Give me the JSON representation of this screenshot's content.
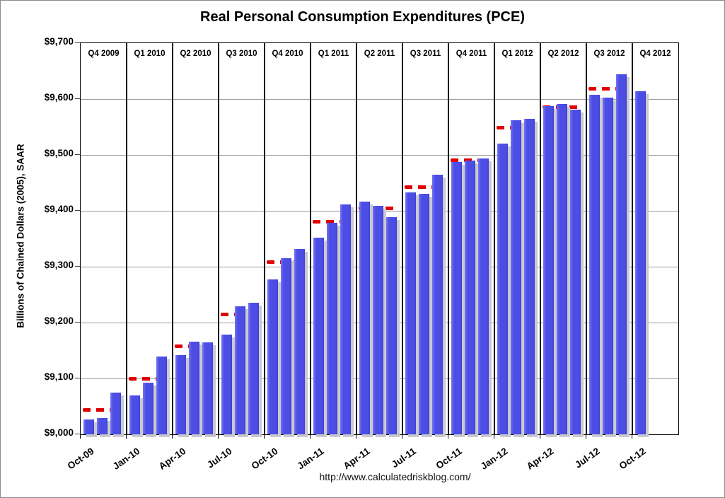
{
  "title": "Real Personal Consumption Expenditures (PCE)",
  "source_url": "http://www.calculatedriskblog.com/",
  "y_axis": {
    "label": "Billions of Chained Dollars (2005), SAAR",
    "min": 9000,
    "max": 9700,
    "step": 100,
    "tick_labels": [
      "$9,000",
      "$9,100",
      "$9,200",
      "$9,300",
      "$9,400",
      "$9,500",
      "$9,600",
      "$9,700"
    ]
  },
  "x_axis": {
    "tick_labels": [
      "Oct-09",
      "Jan-10",
      "Apr-10",
      "Jul-10",
      "Oct-10",
      "Jan-11",
      "Apr-11",
      "Jul-11",
      "Oct-11",
      "Jan-12",
      "Apr-12",
      "Jul-12",
      "Oct-12"
    ]
  },
  "quarters": [
    {
      "label": "Q4 2009",
      "average": 9044
    },
    {
      "label": "Q1 2010",
      "average": 9100
    },
    {
      "label": "Q2 2010",
      "average": 9158
    },
    {
      "label": "Q3 2010",
      "average": 9215
    },
    {
      "label": "Q4 2010",
      "average": 9308
    },
    {
      "label": "Q1 2011",
      "average": 9381
    },
    {
      "label": "Q2 2011",
      "average": 9404
    },
    {
      "label": "Q3 2011",
      "average": 9443
    },
    {
      "label": "Q4 2011",
      "average": 9490
    },
    {
      "label": "Q1 2012",
      "average": 9549
    },
    {
      "label": "Q2 2012",
      "average": 9586
    },
    {
      "label": "Q3 2012",
      "average": 9618
    },
    {
      "label": "Q4 2012",
      "average": null
    }
  ],
  "colors": {
    "bar": "#4b4de5",
    "bar_shadow": "#c9c9ce",
    "quarter_average_dash": "#e00000",
    "gridline": "#9a9a9a",
    "axis": "#000000",
    "background": "#ffffff"
  },
  "chart_data": {
    "type": "bar",
    "title": "Real Personal Consumption Expenditures (PCE)",
    "xlabel": "",
    "ylabel": "Billions of Chained Dollars (2005), SAAR",
    "ylim": [
      9000,
      9700
    ],
    "grid": true,
    "legend": "none",
    "x": [
      "Oct-09",
      "Nov-09",
      "Dec-09",
      "Jan-10",
      "Feb-10",
      "Mar-10",
      "Apr-10",
      "May-10",
      "Jun-10",
      "Jul-10",
      "Aug-10",
      "Sep-10",
      "Oct-10",
      "Nov-10",
      "Dec-10",
      "Jan-11",
      "Feb-11",
      "Mar-11",
      "Apr-11",
      "May-11",
      "Jun-11",
      "Jul-11",
      "Aug-11",
      "Sep-11",
      "Oct-11",
      "Nov-11",
      "Dec-11",
      "Jan-12",
      "Feb-12",
      "Mar-12",
      "Apr-12",
      "May-12",
      "Jun-12",
      "Jul-12",
      "Aug-12",
      "Sep-12",
      "Oct-12"
    ],
    "series": [
      {
        "name": "Monthly Real PCE",
        "type": "bar",
        "values": [
          9027,
          9029,
          9075,
          9069,
          9093,
          9139,
          9142,
          9166,
          9165,
          9179,
          9229,
          9236,
          9277,
          9315,
          9332,
          9352,
          9378,
          9412,
          9416,
          9409,
          9388,
          9433,
          9430,
          9465,
          9487,
          9490,
          9494,
          9520,
          9562,
          9564,
          9587,
          9591,
          9581,
          9607,
          9602,
          9644,
          9614
        ]
      },
      {
        "name": "Quarterly average (red dashed)",
        "type": "dashed-level",
        "categories": [
          "Q4 2009",
          "Q1 2010",
          "Q2 2010",
          "Q3 2010",
          "Q4 2010",
          "Q1 2011",
          "Q2 2011",
          "Q3 2011",
          "Q4 2011",
          "Q1 2012",
          "Q2 2012",
          "Q3 2012",
          "Q4 2012"
        ],
        "values": [
          9044,
          9100,
          9158,
          9215,
          9308,
          9381,
          9404,
          9443,
          9490,
          9549,
          9586,
          9618,
          null
        ]
      }
    ]
  }
}
